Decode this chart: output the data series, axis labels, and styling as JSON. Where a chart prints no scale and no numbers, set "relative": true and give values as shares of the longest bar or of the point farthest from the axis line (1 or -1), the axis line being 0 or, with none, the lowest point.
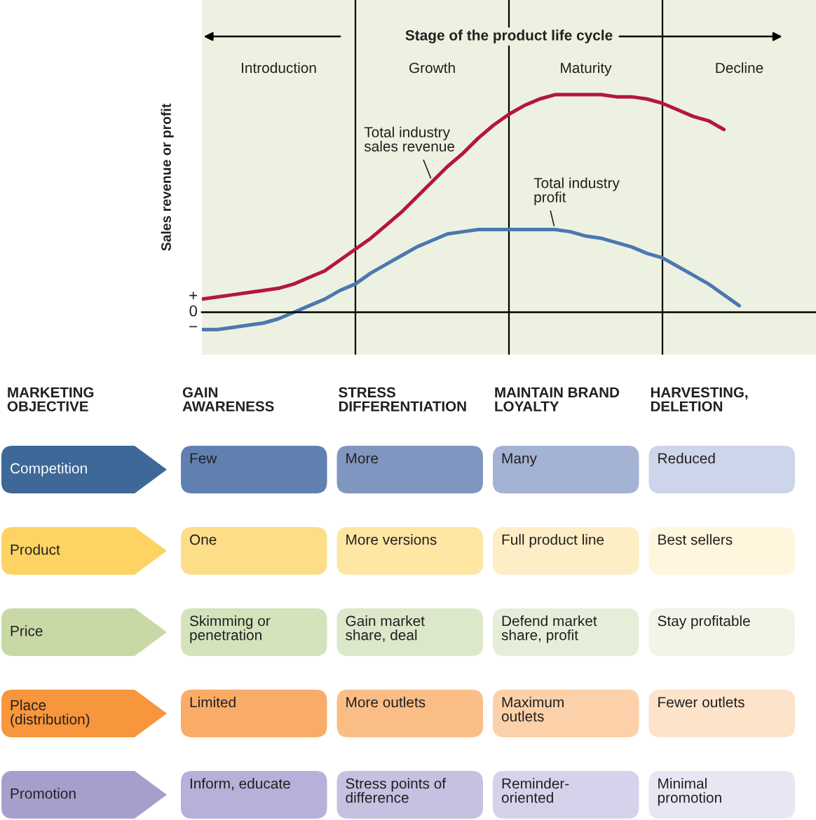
{
  "chart_data": [
    {
      "type": "line",
      "title": "Stage of the product life cycle",
      "ylabel": "Sales revenue or profit",
      "relative": true,
      "grid": "x",
      "categories": [
        null,
        null,
        null,
        null,
        null,
        "Introduction",
        null,
        null,
        null,
        null,
        null,
        null,
        null,
        null,
        null,
        "Growth",
        null,
        null,
        null,
        null,
        null,
        null,
        null,
        null,
        null,
        "Maturity",
        null,
        null,
        null,
        null,
        null,
        null,
        null,
        null,
        null,
        "Decline",
        null,
        null,
        null,
        null,
        null
      ],
      "series": [
        {
          "name": "Total industry\nsales revenue",
          "color": "#b3173f",
          "values": [
            0.06,
            0.07,
            0.08,
            0.09,
            0.1,
            0.11,
            0.13,
            0.16,
            0.19,
            0.24,
            0.29,
            0.34,
            0.4,
            0.46,
            0.53,
            0.6,
            0.67,
            0.73,
            0.8,
            0.86,
            0.91,
            0.95,
            0.98,
            1.0,
            1.0,
            1.0,
            1.0,
            0.99,
            0.99,
            0.98,
            0.96,
            0.93,
            0.9,
            0.88,
            0.84,
            null,
            null,
            null,
            null,
            null,
            null
          ]
        },
        {
          "name": "Total industry\nprofit",
          "color": "#4a78b0",
          "values": [
            -0.08,
            -0.08,
            -0.07,
            -0.06,
            -0.05,
            -0.03,
            0.0,
            0.03,
            0.06,
            0.1,
            0.13,
            0.18,
            0.22,
            0.26,
            0.3,
            0.33,
            0.36,
            0.37,
            0.38,
            0.38,
            0.38,
            0.38,
            0.38,
            0.38,
            0.37,
            0.35,
            0.34,
            0.32,
            0.3,
            0.27,
            0.25,
            0.21,
            0.17,
            0.13,
            0.08,
            0.03,
            null,
            null,
            null,
            null,
            null
          ]
        }
      ],
      "annotations": [
        "+",
        "0",
        "−"
      ]
    },
    {
      "type": "other",
      "categories": [
        "MARKETING\nOBJECTIVE",
        "GAIN\nAWARENESS",
        "STRESS\nDIFFERENTIATION",
        "MAINTAIN BRAND\nLOYALTY",
        "HARVESTING,\nDELETION"
      ],
      "y_categories": [
        "Competition",
        "Product",
        "Price",
        "Place\n(distribution)",
        "Promotion"
      ],
      "cell_labels": [
        [
          "Few",
          "More",
          "Many",
          "Reduced"
        ],
        [
          "One",
          "More versions",
          "Full product line",
          "Best sellers"
        ],
        [
          "Skimming or\npenetration",
          "Gain market\nshare, deal",
          "Defend market\nshare, profit",
          "Stay profitable"
        ],
        [
          "Limited",
          "More outlets",
          "Maximum\noutlets",
          "Fewer outlets"
        ],
        [
          "Inform, educate",
          "Stress points of\ndifference",
          "Reminder-\noriented",
          "Minimal\npromotion"
        ]
      ],
      "colors": [
        "#3e6898",
        "#6080b0",
        "#7f97c0",
        "#a4b3d4",
        "#cdd5ea",
        "#fdd464",
        "#fedd88",
        "#fee6a3",
        "#feeec5",
        "#fff6de",
        "#c8d9a6",
        "#d3e3bc",
        "#dce8ca",
        "#e6eed9",
        "#f0f5e8",
        "#f7963c",
        "#f9ac68",
        "#fbbd86",
        "#fcd1a9",
        "#fde3ca",
        "#a59fcc",
        "#b5b1d9",
        "#c4c1e1",
        "#d5d3eb",
        "#e7e6f3"
      ]
    }
  ]
}
